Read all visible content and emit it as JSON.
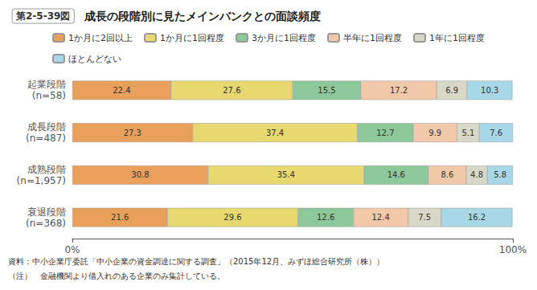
{
  "chart_data": {
    "type": "bar",
    "orientation": "horizontal",
    "stacked": true,
    "title": "成長の段階別に見たメインバンクとの面談頻度",
    "annotations": [
      "第2-5-39図",
      "資料：中小企業庁委託「中小企業の資金調達に関する調査」（2015年12月、みずほ総合研究所（株））",
      "（注）　金融機関より借入れのある企業のみ集計している。"
    ],
    "categories": [
      "起業段階\n(n=58)",
      "成長段階\n(n=487)",
      "成熟段階\n(n=1,957)",
      "衰退段階\n(n=368)"
    ],
    "series": [
      {
        "name": "1か月に2回以上",
        "color": "#E8A05A",
        "values": [
          22.4,
          27.3,
          30.8,
          21.6
        ]
      },
      {
        "name": "1か月に1回程度",
        "color": "#E8D870",
        "values": [
          27.6,
          37.4,
          35.4,
          29.6
        ]
      },
      {
        "name": "3か月に1回程度",
        "color": "#8DC89A",
        "values": [
          15.5,
          12.7,
          14.6,
          12.6
        ]
      },
      {
        "name": "半年に1回程度",
        "color": "#F2C9A8",
        "values": [
          17.2,
          9.9,
          8.6,
          12.4
        ]
      },
      {
        "name": "1年に1回程度",
        "color": "#D8D8C8",
        "values": [
          6.9,
          5.1,
          4.8,
          7.5
        ]
      },
      {
        "name": "ほとんどない",
        "color": "#A8D8E8",
        "values": [
          10.3,
          7.6,
          5.8,
          16.2
        ]
      }
    ],
    "xlim": [
      0,
      100
    ],
    "xticks": [
      {
        "value": 0,
        "label": "0%"
      },
      {
        "value": 100,
        "label": "100%"
      }
    ],
    "data_labels": true,
    "grid": false,
    "legend": "top"
  }
}
